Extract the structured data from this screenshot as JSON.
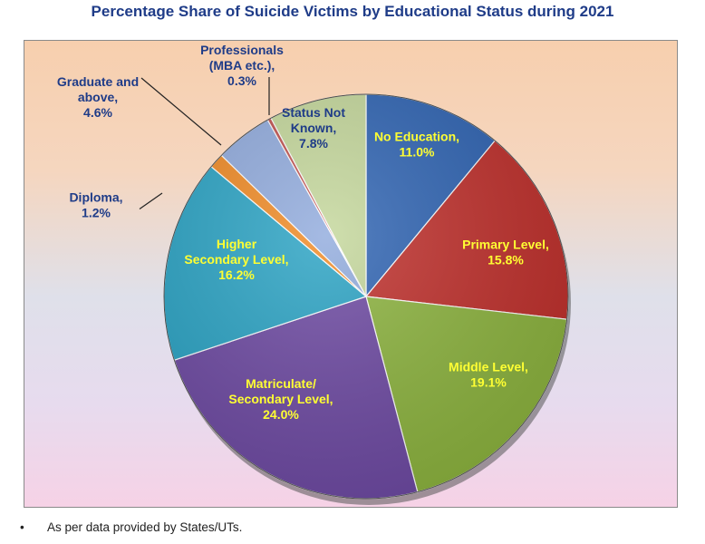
{
  "chart_data": {
    "type": "pie",
    "title": "Percentage Share of Suicide Victims by Educational Status during 2021",
    "slices": [
      {
        "label": [
          "No Education,",
          "11.0%"
        ],
        "value": 11.0,
        "color": "#2f64b3",
        "text_color": "#ffff33"
      },
      {
        "label": [
          "Primary Level,",
          "15.8%"
        ],
        "value": 15.8,
        "color": "#c0302c",
        "text_color": "#ffff33"
      },
      {
        "label": [
          "Middle Level,",
          "19.1%"
        ],
        "value": 19.1,
        "color": "#8db43f",
        "text_color": "#ffff33"
      },
      {
        "label": [
          "Matriculate/",
          "Secondary Level,",
          "24.0%"
        ],
        "value": 24.0,
        "color": "#6e4aa3",
        "text_color": "#ffff33"
      },
      {
        "label": [
          "Higher",
          "Secondary Level,",
          "16.2%"
        ],
        "value": 16.2,
        "color": "#2aa3c4",
        "text_color": "#ffff33"
      },
      {
        "label": [
          "Diploma,",
          "1.2%"
        ],
        "value": 1.2,
        "color": "#f08a24",
        "text_color": "#1f3c88"
      },
      {
        "label": [
          "Graduate and",
          "above,",
          "4.6%"
        ],
        "value": 4.6,
        "color": "#91abdd",
        "text_color": "#1f3c88"
      },
      {
        "label": [
          "Professionals",
          "(MBA etc.),",
          "0.3%"
        ],
        "value": 0.3,
        "color": "#c0504d",
        "text_color": "#1f3c88"
      },
      {
        "label": [
          "Status Not",
          "Known,",
          "7.8%"
        ],
        "value": 7.8,
        "color": "#c4d79b",
        "text_color": "#1f3c88"
      }
    ],
    "start": "top",
    "direction": "clockwise",
    "legend": "none"
  },
  "footnote": "As per data provided by States/UTs.",
  "bullet": "•"
}
